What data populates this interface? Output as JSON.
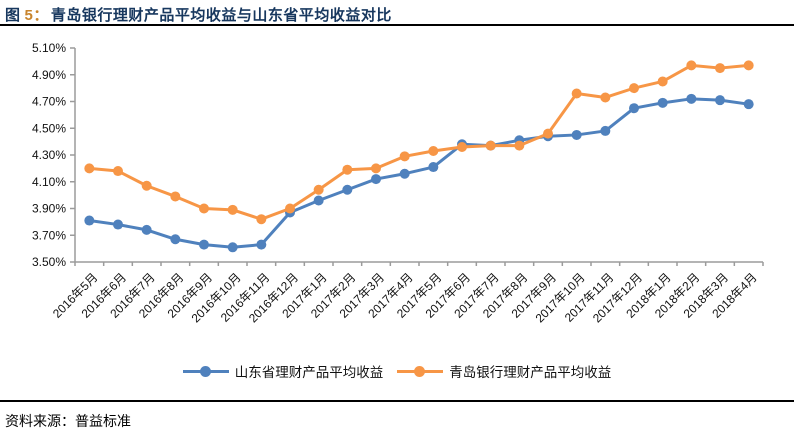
{
  "header": {
    "figure_label": "图",
    "figure_number": "5：",
    "title": "青岛银行理财产品平均收益与山东省平均收益对比"
  },
  "footer": {
    "source": "资料来源：普益标准"
  },
  "colors": {
    "shandong": "#4F81BD",
    "qingdao": "#F79646",
    "title": "#17375E",
    "figure_number": "#C8842C",
    "axis": "#9B9B9B",
    "rule": "#000000"
  },
  "chart_data": {
    "type": "line",
    "title": "青岛银行理财产品平均收益与山东省平均收益对比",
    "xlabel": "",
    "ylabel": "",
    "ylim": [
      3.5,
      5.1
    ],
    "ytick_step": 0.2,
    "ytick_suffix": "%",
    "grid": false,
    "legend_position": "bottom",
    "marker": "circle",
    "categories": [
      "2016年5月",
      "2016年6月",
      "2016年7月",
      "2016年8月",
      "2016年9月",
      "2016年10月",
      "2016年11月",
      "2016年12月",
      "2017年1月",
      "2017年2月",
      "2017年3月",
      "2017年4月",
      "2017年5月",
      "2017年6月",
      "2017年7月",
      "2017年8月",
      "2017年9月",
      "2017年10月",
      "2017年11月",
      "2017年12月",
      "2018年1月",
      "2018年2月",
      "2018年3月",
      "2018年4月"
    ],
    "series": [
      {
        "name": "山东省理财产品平均收益",
        "color_key": "shandong",
        "values": [
          3.81,
          3.78,
          3.74,
          3.67,
          3.63,
          3.61,
          3.63,
          3.87,
          3.96,
          4.04,
          4.12,
          4.16,
          4.21,
          4.38,
          4.37,
          4.41,
          4.44,
          4.45,
          4.48,
          4.65,
          4.69,
          4.72,
          4.71,
          4.68
        ]
      },
      {
        "name": "青岛银行理财产品平均收益",
        "color_key": "qingdao",
        "values": [
          4.2,
          4.18,
          4.07,
          3.99,
          3.9,
          3.89,
          3.82,
          3.9,
          4.04,
          4.19,
          4.2,
          4.29,
          4.33,
          4.36,
          4.37,
          4.37,
          4.46,
          4.76,
          4.73,
          4.8,
          4.85,
          4.97,
          4.95,
          4.97
        ]
      }
    ]
  }
}
